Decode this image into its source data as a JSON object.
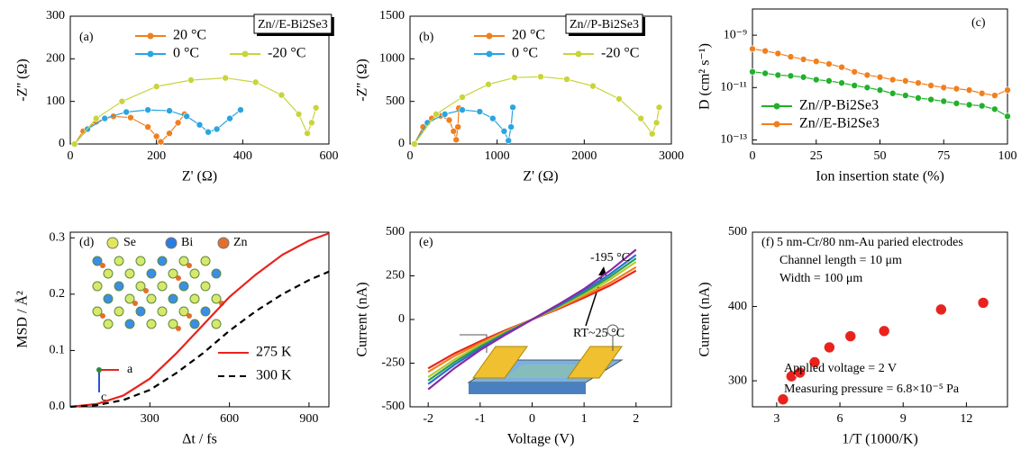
{
  "chart_data": [
    {
      "type": "line",
      "label": "(a)",
      "annotations": [
        "Zn//E-Bi2Se3"
      ],
      "x_label": "Z' (Ω)",
      "y_label": "-Z'' (Ω)",
      "markers": true,
      "xlim": [
        0,
        600
      ],
      "ylim": [
        0,
        300
      ],
      "xticks": [
        0,
        200,
        400,
        600
      ],
      "yticks": [
        0,
        100,
        200,
        300
      ],
      "series": [
        {
          "name": "20 °C",
          "color": "#f07f1e",
          "x": [
            10,
            30,
            60,
            100,
            140,
            180,
            200,
            210,
            230,
            250,
            265
          ],
          "values": [
            0,
            30,
            52,
            65,
            62,
            40,
            18,
            5,
            25,
            50,
            70
          ]
        },
        {
          "name": "0 °C",
          "color": "#2aa5e0",
          "x": [
            10,
            40,
            80,
            130,
            180,
            230,
            270,
            300,
            320,
            340,
            370,
            395
          ],
          "values": [
            0,
            35,
            60,
            75,
            80,
            78,
            65,
            45,
            28,
            35,
            60,
            80
          ]
        },
        {
          "name": "-20 °C",
          "color": "#c8d43a",
          "x": [
            10,
            60,
            120,
            200,
            280,
            360,
            430,
            490,
            530,
            550,
            560,
            570
          ],
          "values": [
            0,
            60,
            100,
            135,
            150,
            155,
            145,
            115,
            70,
            25,
            50,
            85
          ]
        }
      ]
    },
    {
      "type": "line",
      "label": "(b)",
      "annotations": [
        "Zn//P-Bi2Se3"
      ],
      "x_label": "Z' (Ω)",
      "y_label": "-Z'' (Ω)",
      "markers": true,
      "xlim": [
        0,
        3000
      ],
      "ylim": [
        0,
        1500
      ],
      "xticks": [
        0,
        1000,
        2000,
        3000
      ],
      "yticks": [
        0,
        500,
        1000,
        1500
      ],
      "series": [
        {
          "name": "20 °C",
          "color": "#f07f1e",
          "x": [
            50,
            150,
            250,
            350,
            450,
            500,
            530,
            550,
            560
          ],
          "values": [
            0,
            200,
            300,
            330,
            280,
            150,
            50,
            200,
            420
          ]
        },
        {
          "name": "0 °C",
          "color": "#2aa5e0",
          "x": [
            50,
            200,
            400,
            600,
            800,
            950,
            1080,
            1130,
            1160,
            1180
          ],
          "values": [
            0,
            250,
            350,
            400,
            380,
            300,
            150,
            40,
            200,
            430
          ]
        },
        {
          "name": "-20 °C",
          "color": "#c8d43a",
          "x": [
            50,
            300,
            600,
            900,
            1200,
            1500,
            1800,
            2100,
            2400,
            2650,
            2780,
            2830,
            2860
          ],
          "values": [
            0,
            350,
            550,
            700,
            780,
            790,
            760,
            680,
            530,
            300,
            120,
            250,
            430
          ]
        }
      ]
    },
    {
      "type": "line",
      "label": "(c)",
      "x_label": "Ion insertion state (%)",
      "y_label": "D (cm² s⁻¹)",
      "markers": true,
      "log_y": true,
      "xlim": [
        0,
        100
      ],
      "ylim": [
        7e-14,
        1e-08
      ],
      "xticks": [
        0,
        25,
        50,
        75,
        100
      ],
      "yticks": [
        {
          "value": 1e-13,
          "label": "10⁻¹³"
        },
        {
          "value": 1e-11,
          "label": "10⁻¹¹"
        },
        {
          "value": 1e-09,
          "label": "10⁻⁹"
        }
      ],
      "x": [
        0,
        5,
        10,
        15,
        20,
        25,
        30,
        35,
        40,
        45,
        50,
        55,
        60,
        65,
        70,
        75,
        80,
        85,
        90,
        95,
        100
      ],
      "series": [
        {
          "name": "Zn//P-Bi2Se3",
          "color": "#22b02a",
          "values": [
            4e-11,
            3.5e-11,
            3e-11,
            2.8e-11,
            2.5e-11,
            2e-11,
            1.8e-11,
            1.5e-11,
            1.2e-11,
            1e-11,
            8e-12,
            6e-12,
            5e-12,
            4e-12,
            3.5e-12,
            3e-12,
            2.5e-12,
            2.2e-12,
            2e-12,
            1.5e-12,
            8e-13
          ]
        },
        {
          "name": "Zn//E-Bi2Se3",
          "color": "#f07f1e",
          "values": [
            3e-10,
            2.5e-10,
            2e-10,
            1.5e-10,
            1.2e-10,
            1e-10,
            8e-11,
            6e-11,
            4e-11,
            3e-11,
            2.5e-11,
            2e-11,
            1.8e-11,
            1.5e-11,
            1.2e-11,
            1e-11,
            9e-12,
            8e-12,
            6e-12,
            5e-12,
            8e-12
          ]
        }
      ]
    },
    {
      "type": "line",
      "label": "(d)",
      "annotations": [
        "Se",
        "Bi",
        "Zn",
        "a",
        "c"
      ],
      "x_label": "Δt / fs",
      "y_label": "MSD / Å²",
      "xlim": [
        0,
        975
      ],
      "ylim": [
        0,
        0.31
      ],
      "xticks": [
        300,
        600,
        900
      ],
      "yticks": [
        {
          "value": 0,
          "label": "0.0"
        },
        0.1,
        0.2,
        0.3
      ],
      "x": [
        0,
        100,
        200,
        300,
        400,
        500,
        600,
        700,
        800,
        900,
        975
      ],
      "series": [
        {
          "name": "275 K",
          "color": "#e8231d",
          "values": [
            0,
            0.005,
            0.02,
            0.05,
            0.095,
            0.145,
            0.195,
            0.235,
            0.27,
            0.295,
            0.308
          ]
        },
        {
          "name": "300 K",
          "color": "#000000",
          "line_style": "dashed",
          "values": [
            0,
            0.003,
            0.012,
            0.03,
            0.06,
            0.095,
            0.135,
            0.17,
            0.2,
            0.225,
            0.24
          ]
        }
      ]
    },
    {
      "type": "line",
      "label": "(e)",
      "annotations": [
        "-195 °C",
        "RT~25 °C"
      ],
      "x_label": "Voltage (V)",
      "y_label": "Current (nA)",
      "xlim": [
        -2.35,
        2.68
      ],
      "ylim": [
        -500,
        500
      ],
      "xticks": [
        -2,
        -1,
        0,
        1,
        2
      ],
      "yticks": [
        -500,
        -250,
        0,
        250,
        500
      ],
      "x": [
        -2,
        -1.5,
        -1,
        -0.5,
        0,
        0.5,
        1,
        1.5,
        2
      ],
      "series": [
        {
          "color": "#e8231d",
          "values": [
            -280,
            -195,
            -125,
            -60,
            0,
            60,
            125,
            195,
            280
          ]
        },
        {
          "color": "#f07f1e",
          "values": [
            -300,
            -210,
            -135,
            -65,
            0,
            65,
            135,
            210,
            300
          ]
        },
        {
          "color": "#b5c832",
          "values": [
            -330,
            -230,
            -145,
            -70,
            0,
            70,
            145,
            230,
            330
          ]
        },
        {
          "color": "#22a04a",
          "values": [
            -350,
            -245,
            -155,
            -75,
            0,
            75,
            155,
            245,
            350
          ]
        },
        {
          "color": "#2a6fd0",
          "values": [
            -370,
            -260,
            -165,
            -80,
            0,
            80,
            165,
            260,
            370
          ]
        },
        {
          "color": "#8a2aa0",
          "values": [
            -400,
            -280,
            -175,
            -85,
            0,
            85,
            175,
            280,
            400
          ]
        }
      ]
    },
    {
      "type": "scatter",
      "label": "(f)",
      "annotations": [
        "5 nm-Cr/80 nm-Au paried electrodes",
        "Channel length = 10 μm",
        "Width = 100 μm",
        "Applied voltage = 2 V",
        "Measuring pressure = 6.8×10⁻⁵ Pa"
      ],
      "x_label": "1/T (1000/K)",
      "y_label": "Current (nA)",
      "xlim": [
        1.85,
        13.95
      ],
      "ylim": [
        265,
        500
      ],
      "xticks": [
        3,
        6,
        9,
        12
      ],
      "yticks": [
        300,
        400,
        500
      ],
      "x": [
        3.3,
        3.7,
        4.1,
        4.8,
        5.5,
        6.5,
        8.1,
        10.8,
        12.8
      ],
      "values": [
        275,
        306,
        311,
        325,
        345,
        360,
        367,
        396,
        405
      ],
      "color": "#e8231d"
    }
  ]
}
